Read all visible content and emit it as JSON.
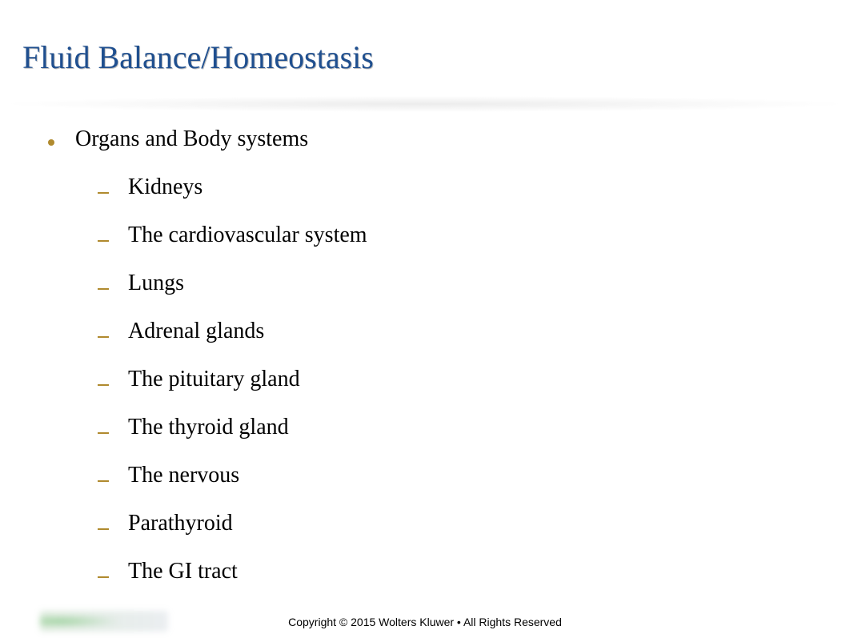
{
  "slide": {
    "title": "Fluid Balance/Homeostasis",
    "title_color": "#1f4f8f",
    "title_fontsize": 40,
    "bullet_color": "#b08a2e",
    "text_color": "#000000",
    "body_fontsize": 28,
    "level1": {
      "text": "Organs and Body systems"
    },
    "level2": [
      {
        "text": "Kidneys"
      },
      {
        "text": "The cardiovascular system"
      },
      {
        "text": "Lungs"
      },
      {
        "text": "Adrenal glands"
      },
      {
        "text": "The pituitary gland"
      },
      {
        "text": "The thyroid gland"
      },
      {
        "text": "The nervous"
      },
      {
        "text": "Parathyroid"
      },
      {
        "text": "The GI tract"
      }
    ],
    "footer": "Copyright © 2015 Wolters Kluwer • All Rights Reserved"
  }
}
